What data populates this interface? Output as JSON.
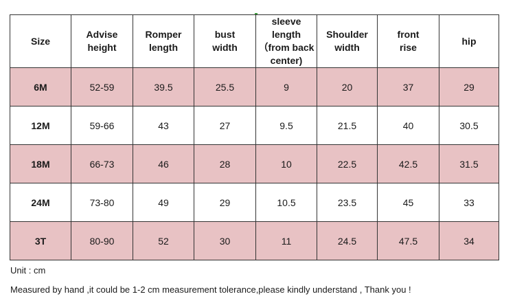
{
  "table": {
    "headers": [
      [
        "Size"
      ],
      [
        "Advise",
        "height"
      ],
      [
        "Romper",
        "length"
      ],
      [
        "bust",
        "width"
      ],
      [
        "sleeve",
        "length",
        "（from back",
        "center)"
      ],
      [
        "Shoulder",
        "width"
      ],
      [
        "front",
        "rise"
      ],
      [
        "hip"
      ]
    ],
    "rows": [
      [
        "6M",
        "52-59",
        "39.5",
        "25.5",
        "9",
        "20",
        "37",
        "29"
      ],
      [
        "12M",
        "59-66",
        "43",
        "27",
        "9.5",
        "21.5",
        "40",
        "30.5"
      ],
      [
        "18M",
        "66-73",
        "46",
        "28",
        "10",
        "22.5",
        "42.5",
        "31.5"
      ],
      [
        "24M",
        "73-80",
        "49",
        "29",
        "10.5",
        "23.5",
        "45",
        "33"
      ],
      [
        "3T",
        "80-90",
        "52",
        "30",
        "11",
        "24.5",
        "47.5",
        "34"
      ]
    ],
    "shaded_row_color": "#e8c2c4",
    "border_color": "#333333"
  },
  "notes": {
    "unit": "Unit : cm",
    "disclaimer": "Measured by hand ,it could be 1-2 cm measurement tolerance,please kindly understand , Thank you !"
  }
}
